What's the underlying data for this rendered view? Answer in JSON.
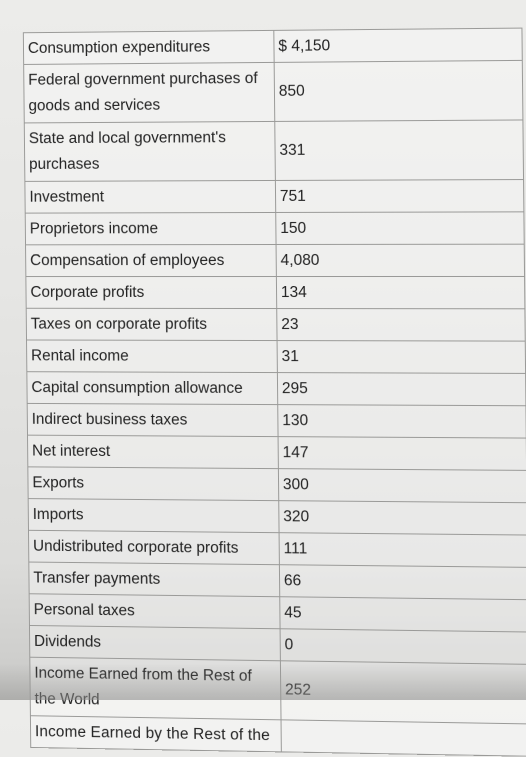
{
  "rows": [
    {
      "label": "Consumption expenditures",
      "value": "$ 4,150"
    },
    {
      "label": "Federal government purchases of goods and services",
      "value": "850"
    },
    {
      "label": "State and local government's purchases",
      "value": "331"
    },
    {
      "label": "Investment",
      "value": "751"
    },
    {
      "label": "Proprietors income",
      "value": "150"
    },
    {
      "label": "Compensation of employees",
      "value": "4,080"
    },
    {
      "label": "Corporate profits",
      "value": "134"
    },
    {
      "label": "Taxes on corporate profits",
      "value": "23"
    },
    {
      "label": "Rental income",
      "value": "31"
    },
    {
      "label": "Capital consumption allowance",
      "value": "295"
    },
    {
      "label": "Indirect business taxes",
      "value": "130"
    },
    {
      "label": "Net interest",
      "value": "147"
    },
    {
      "label": "Exports",
      "value": "300"
    },
    {
      "label": "Imports",
      "value": "320"
    },
    {
      "label": "Undistributed corporate profits",
      "value": "111"
    },
    {
      "label": "Transfer payments",
      "value": "66"
    },
    {
      "label": "Personal taxes",
      "value": "45"
    },
    {
      "label": "Dividends",
      "value": "0"
    },
    {
      "label": "Income Earned from the Rest of the World",
      "value": "252"
    },
    {
      "label": "Income Earned by the Rest of the",
      "value": ""
    }
  ]
}
